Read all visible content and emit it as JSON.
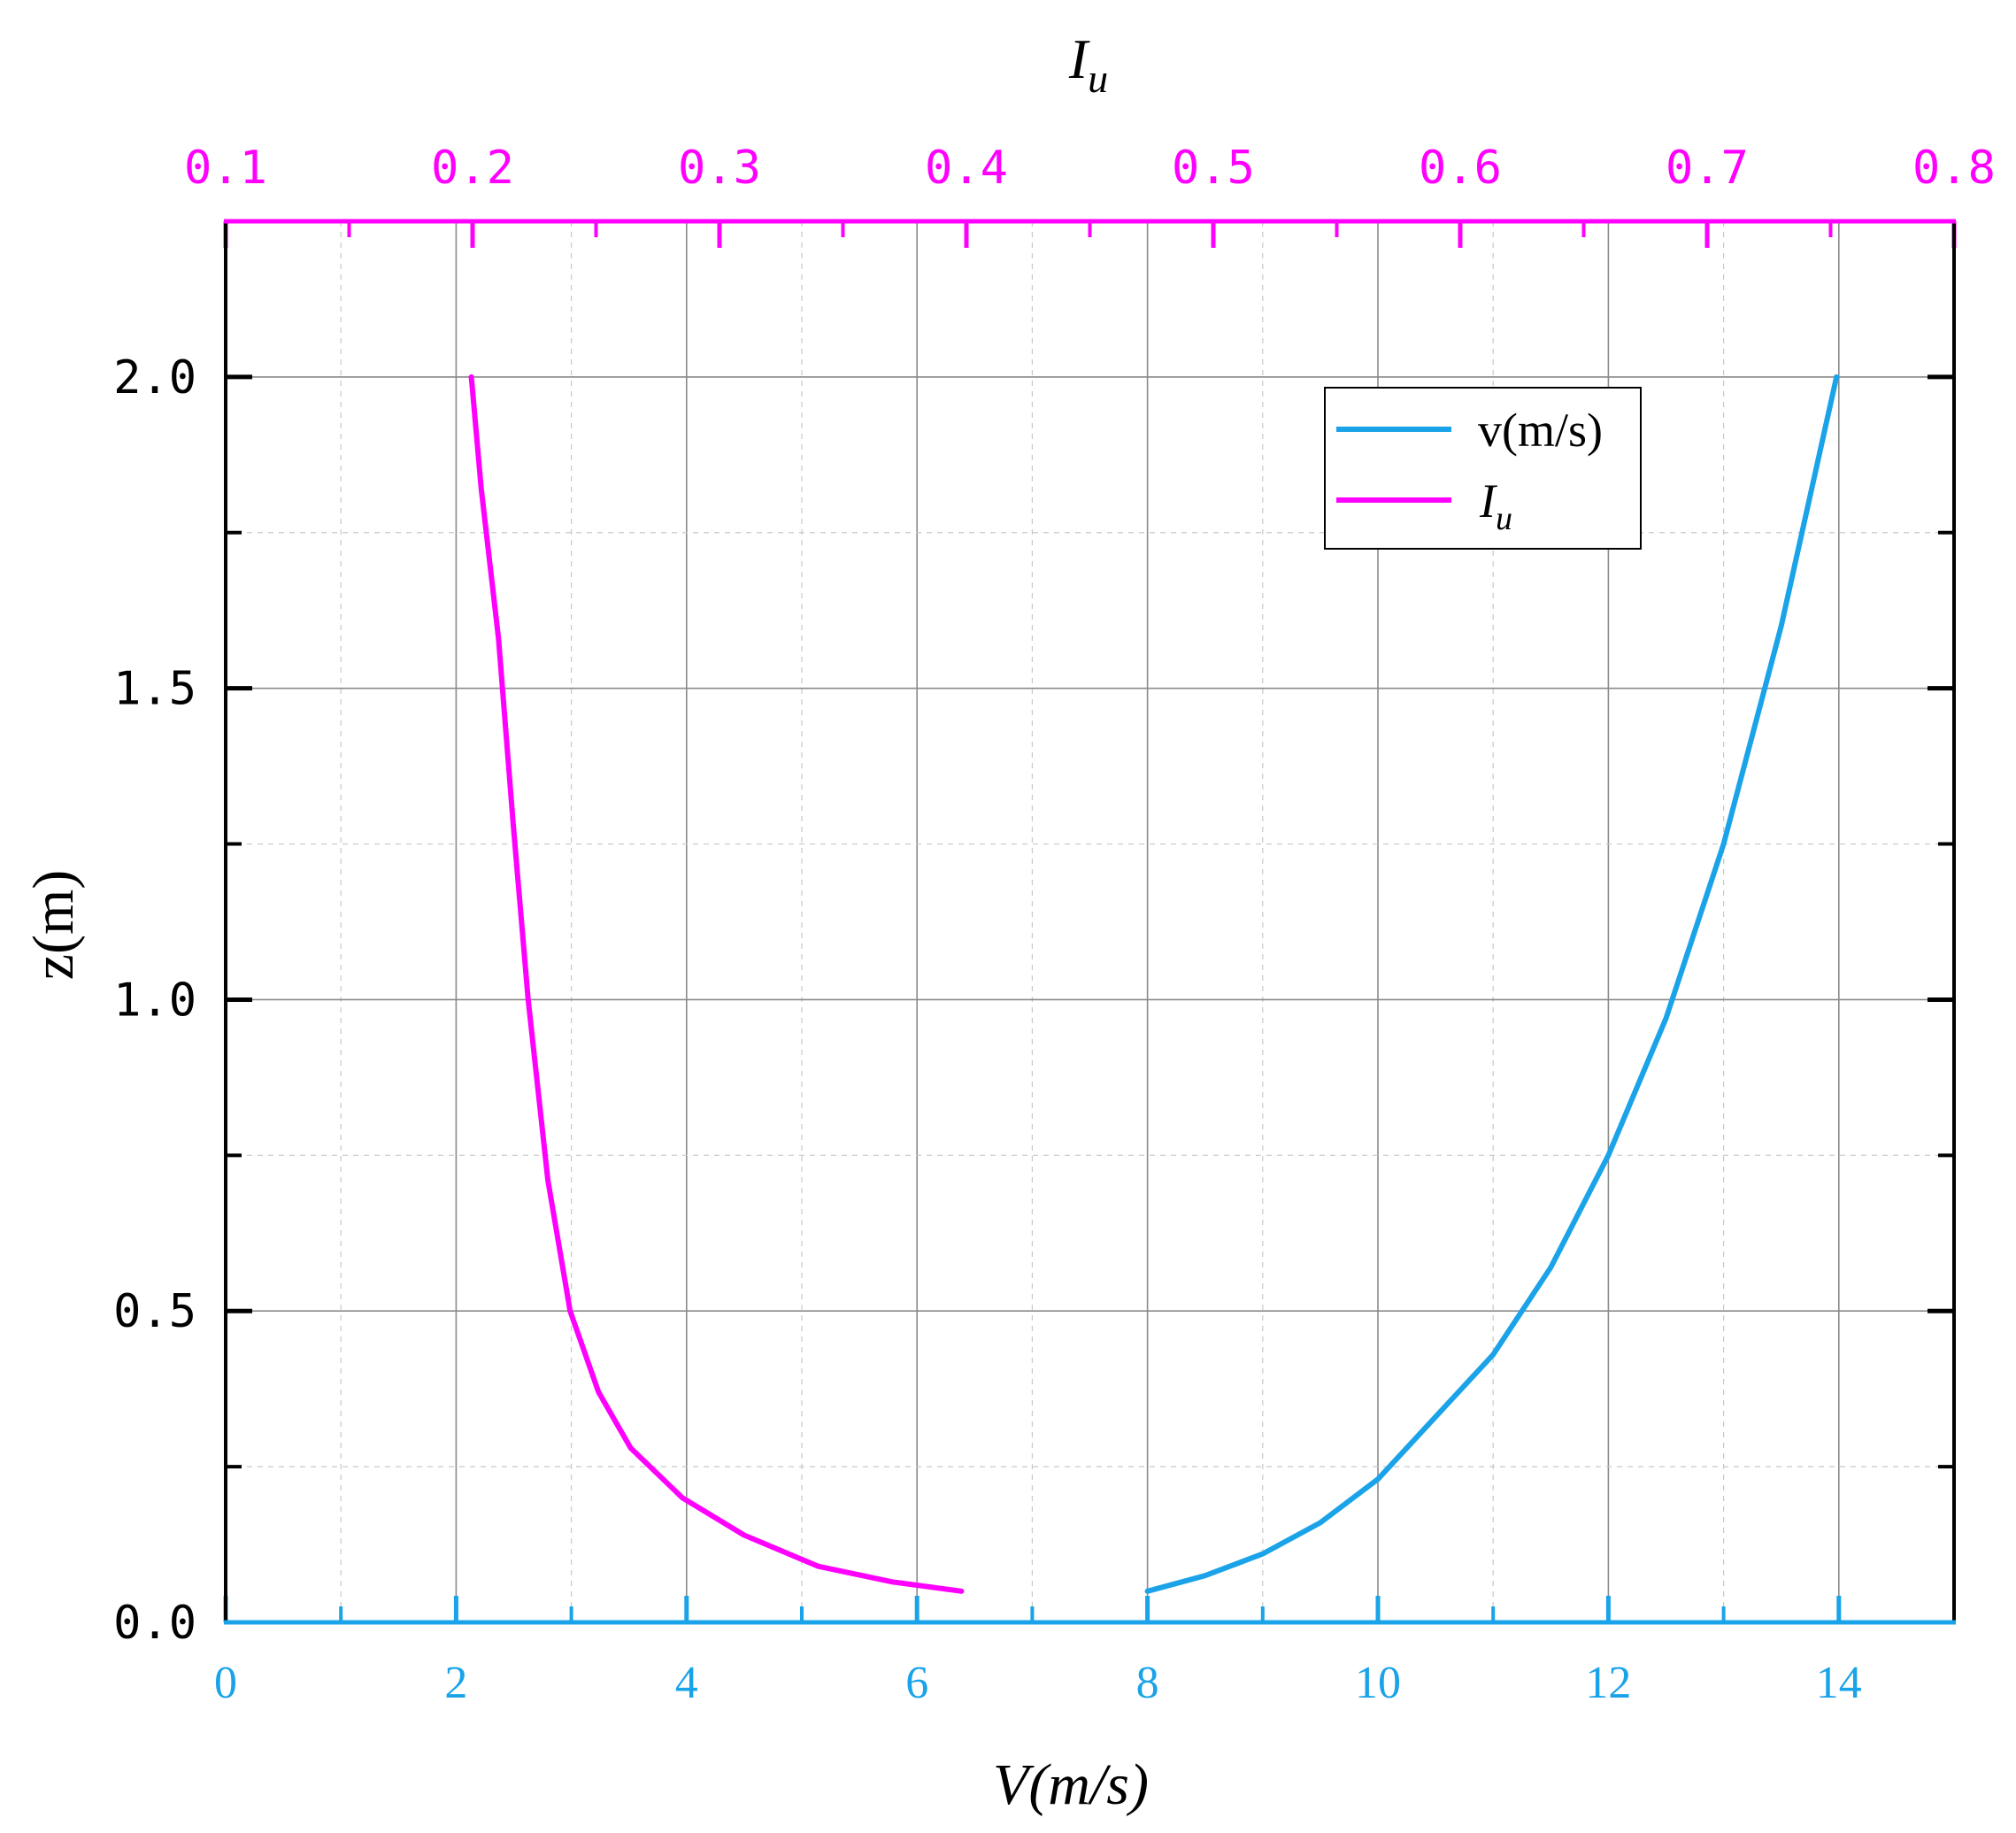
{
  "chart_data": {
    "type": "line",
    "xlabel": "V(m/s)",
    "ylabel": "z(m)",
    "x2label": "I",
    "x2label_sub": "u",
    "xlim": [
      0,
      15
    ],
    "x2lim": [
      0.1,
      0.8
    ],
    "ylim": [
      0,
      2.25
    ],
    "x_ticks": [
      "0",
      "2",
      "4",
      "6",
      "8",
      "10",
      "12",
      "14"
    ],
    "x2_ticks": [
      "0.1",
      "0.2",
      "0.3",
      "0.4",
      "0.5",
      "0.6",
      "0.7",
      "0.8"
    ],
    "y_ticks": [
      "0.0",
      "0.5",
      "1.0",
      "1.5",
      "2.0"
    ],
    "grid": true,
    "legend_position": "top-right",
    "colors": {
      "v": "#1aa3e8",
      "Iu": "#ff00ff",
      "axes": "#000000"
    },
    "series": [
      {
        "name": "v(m/s)",
        "axis": "bottom",
        "color": "#1aa3e8",
        "points": [
          [
            8.0,
            0.05
          ],
          [
            8.5,
            0.075
          ],
          [
            9.0,
            0.11
          ],
          [
            9.5,
            0.16
          ],
          [
            10.0,
            0.23
          ],
          [
            10.5,
            0.33
          ],
          [
            11.0,
            0.43
          ],
          [
            11.5,
            0.57
          ],
          [
            12.0,
            0.75
          ],
          [
            12.5,
            0.97
          ],
          [
            13.0,
            1.25
          ],
          [
            13.5,
            1.6
          ],
          [
            13.98,
            2.0
          ]
        ]
      },
      {
        "name": "I",
        "name_sub": "u",
        "axis": "top",
        "color": "#ff00ff",
        "points": [
          [
            0.398,
            0.05
          ],
          [
            0.37,
            0.065
          ],
          [
            0.34,
            0.09
          ],
          [
            0.31,
            0.14
          ],
          [
            0.285,
            0.2
          ],
          [
            0.264,
            0.28
          ],
          [
            0.251,
            0.37
          ],
          [
            0.2395,
            0.5
          ],
          [
            0.2305,
            0.71
          ],
          [
            0.2225,
            1.0
          ],
          [
            0.2165,
            1.28
          ],
          [
            0.2105,
            1.58
          ],
          [
            0.2035,
            1.82
          ],
          [
            0.1995,
            2.0
          ]
        ]
      }
    ]
  }
}
